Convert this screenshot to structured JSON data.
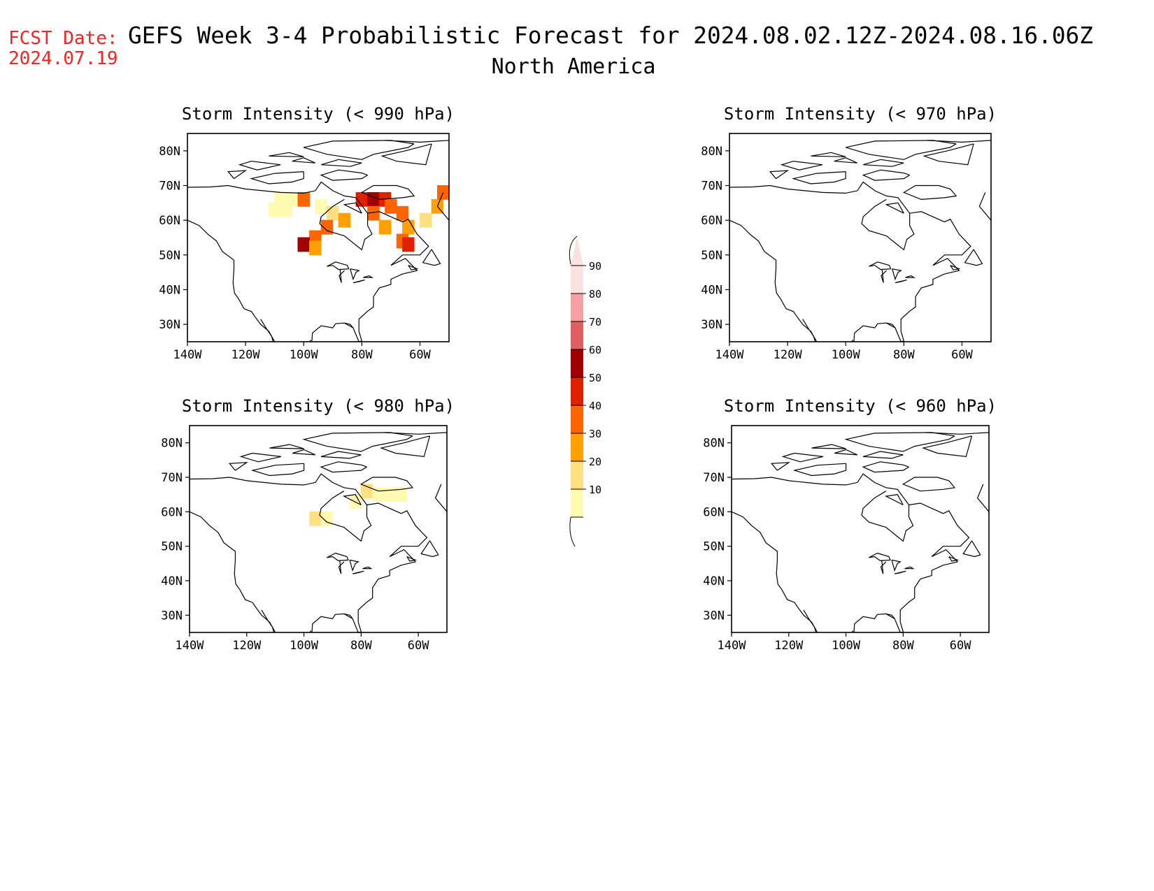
{
  "header": {
    "fcst_label": "FCST Date:",
    "fcst_date": "2024.07.19",
    "title": "GEFS Week 3-4 Probabilistic Forecast for 2024.08.02.12Z-2024.08.16.06Z",
    "subtitle": "North America",
    "header_color": "#ff2020"
  },
  "axes": {
    "lat_labels": [
      "80N",
      "70N",
      "60N",
      "50N",
      "40N",
      "30N"
    ],
    "lat_values": [
      80,
      70,
      60,
      50,
      40,
      30
    ],
    "lon_labels": [
      "140W",
      "120W",
      "100W",
      "80W",
      "60W"
    ],
    "lon_values": [
      -140,
      -120,
      -100,
      -80,
      -60
    ],
    "lat_range": [
      25,
      85
    ],
    "lon_range": [
      -140,
      -50
    ]
  },
  "panels": [
    {
      "id": "p990",
      "title": "Storm Intensity (< 990 hPa)"
    },
    {
      "id": "p970",
      "title": "Storm Intensity (< 970 hPa)"
    },
    {
      "id": "p980",
      "title": "Storm Intensity (< 980 hPa)"
    },
    {
      "id": "p960",
      "title": "Storm Intensity (< 960 hPa)"
    }
  ],
  "colorbar": {
    "labels": [
      "90",
      "80",
      "70",
      "60",
      "50",
      "40",
      "30",
      "20",
      "10"
    ],
    "colors": [
      "#fde0e0",
      "#f4a0a0",
      "#e06060",
      "#a00000",
      "#e02000",
      "#ff6400",
      "#ffa000",
      "#ffe080",
      "#fffab0"
    ]
  },
  "chart_data": [
    {
      "type": "heatmap",
      "title": "Storm Intensity (< 990 hPa)",
      "units": "probability %",
      "cells": [
        {
          "lon": -108,
          "lat": 66,
          "value": 15
        },
        {
          "lon": -104,
          "lat": 66,
          "value": 15
        },
        {
          "lon": -100,
          "lat": 66,
          "value": 45
        },
        {
          "lon": -110,
          "lat": 63,
          "value": 15
        },
        {
          "lon": -106,
          "lat": 63,
          "value": 15
        },
        {
          "lon": -94,
          "lat": 64,
          "value": 15
        },
        {
          "lon": -90,
          "lat": 62,
          "value": 25
        },
        {
          "lon": -86,
          "lat": 60,
          "value": 35
        },
        {
          "lon": -92,
          "lat": 58,
          "value": 45
        },
        {
          "lon": -96,
          "lat": 55,
          "value": 45
        },
        {
          "lon": -100,
          "lat": 53,
          "value": 65
        },
        {
          "lon": -96,
          "lat": 52,
          "value": 35
        },
        {
          "lon": -80,
          "lat": 66,
          "value": 55
        },
        {
          "lon": -76,
          "lat": 66,
          "value": 65
        },
        {
          "lon": -72,
          "lat": 66,
          "value": 55
        },
        {
          "lon": -70,
          "lat": 64,
          "value": 45
        },
        {
          "lon": -66,
          "lat": 62,
          "value": 45
        },
        {
          "lon": -76,
          "lat": 62,
          "value": 45
        },
        {
          "lon": -72,
          "lat": 58,
          "value": 35
        },
        {
          "lon": -64,
          "lat": 58,
          "value": 35
        },
        {
          "lon": -58,
          "lat": 60,
          "value": 25
        },
        {
          "lon": -66,
          "lat": 54,
          "value": 45
        },
        {
          "lon": -64,
          "lat": 53,
          "value": 55
        },
        {
          "lon": -54,
          "lat": 64,
          "value": 35
        },
        {
          "lon": -52,
          "lat": 68,
          "value": 45
        }
      ]
    },
    {
      "type": "heatmap",
      "title": "Storm Intensity (< 980 hPa)",
      "units": "probability %",
      "cells": [
        {
          "lon": -96,
          "lat": 58,
          "value": 25
        },
        {
          "lon": -92,
          "lat": 58,
          "value": 15
        },
        {
          "lon": -78,
          "lat": 66,
          "value": 25
        },
        {
          "lon": -74,
          "lat": 65,
          "value": 15
        },
        {
          "lon": -70,
          "lat": 65,
          "value": 15
        },
        {
          "lon": -82,
          "lat": 63,
          "value": 15
        },
        {
          "lon": -66,
          "lat": 65,
          "value": 15
        }
      ]
    },
    {
      "type": "heatmap",
      "title": "Storm Intensity (< 970 hPa)",
      "units": "probability %",
      "cells": []
    },
    {
      "type": "heatmap",
      "title": "Storm Intensity (< 960 hPa)",
      "units": "probability %",
      "cells": []
    }
  ]
}
